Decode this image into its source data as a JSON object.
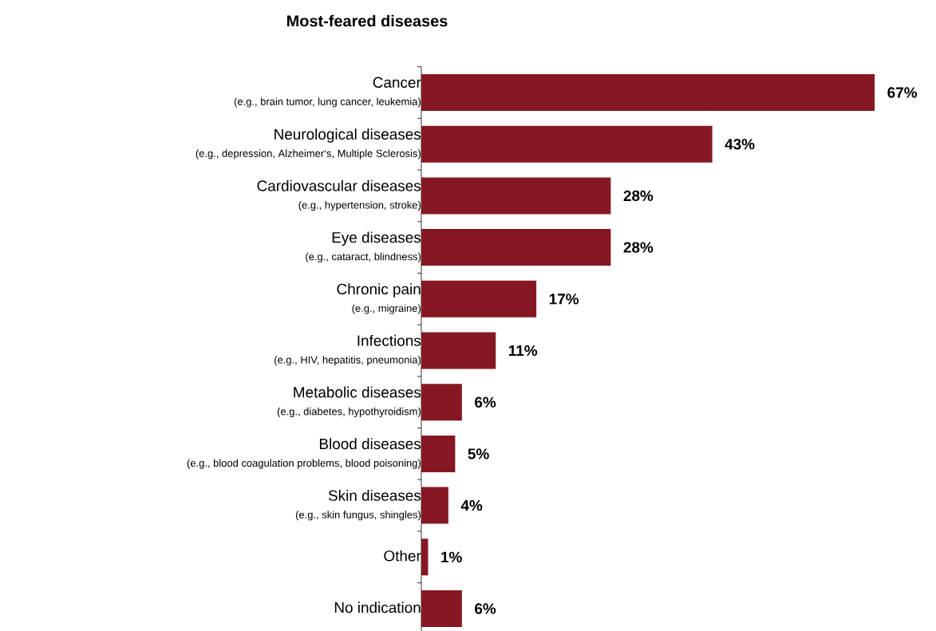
{
  "chart_data": {
    "type": "bar",
    "orientation": "horizontal",
    "title": "Most-feared diseases",
    "categories": [
      "Cancer",
      "Neurological diseases",
      "Cardiovascular diseases",
      "Eye diseases",
      "Chronic pain",
      "Infections",
      "Metabolic diseases",
      "Blood diseases",
      "Skin diseases",
      "Other",
      "No indication"
    ],
    "values": [
      67,
      43,
      28,
      28,
      17,
      11,
      6,
      5,
      4,
      1,
      6
    ],
    "value_labels": [
      "67%",
      "43%",
      "28%",
      "28%",
      "17%",
      "11%",
      "6%",
      "5%",
      "4%",
      "1%",
      "6%"
    ],
    "color": "#851823",
    "annotations": [
      "(e.g., brain tumor, lung cancer, leukemia)",
      "(e.g., depression, Alzheimer‘s, Multiple Sclerosis)",
      "(e.g., hypertension, stroke)",
      "(e.g., cataract, blindness)",
      "(e.g., migraine)",
      "(e.g., HIV, hepatitis, pneumonia)",
      "(e.g., diabetes, hypothyroidism)",
      "(e.g., blood coagulation problems, blood poisoning)",
      "(e.g., skin fungus, shingles)"
    ]
  }
}
